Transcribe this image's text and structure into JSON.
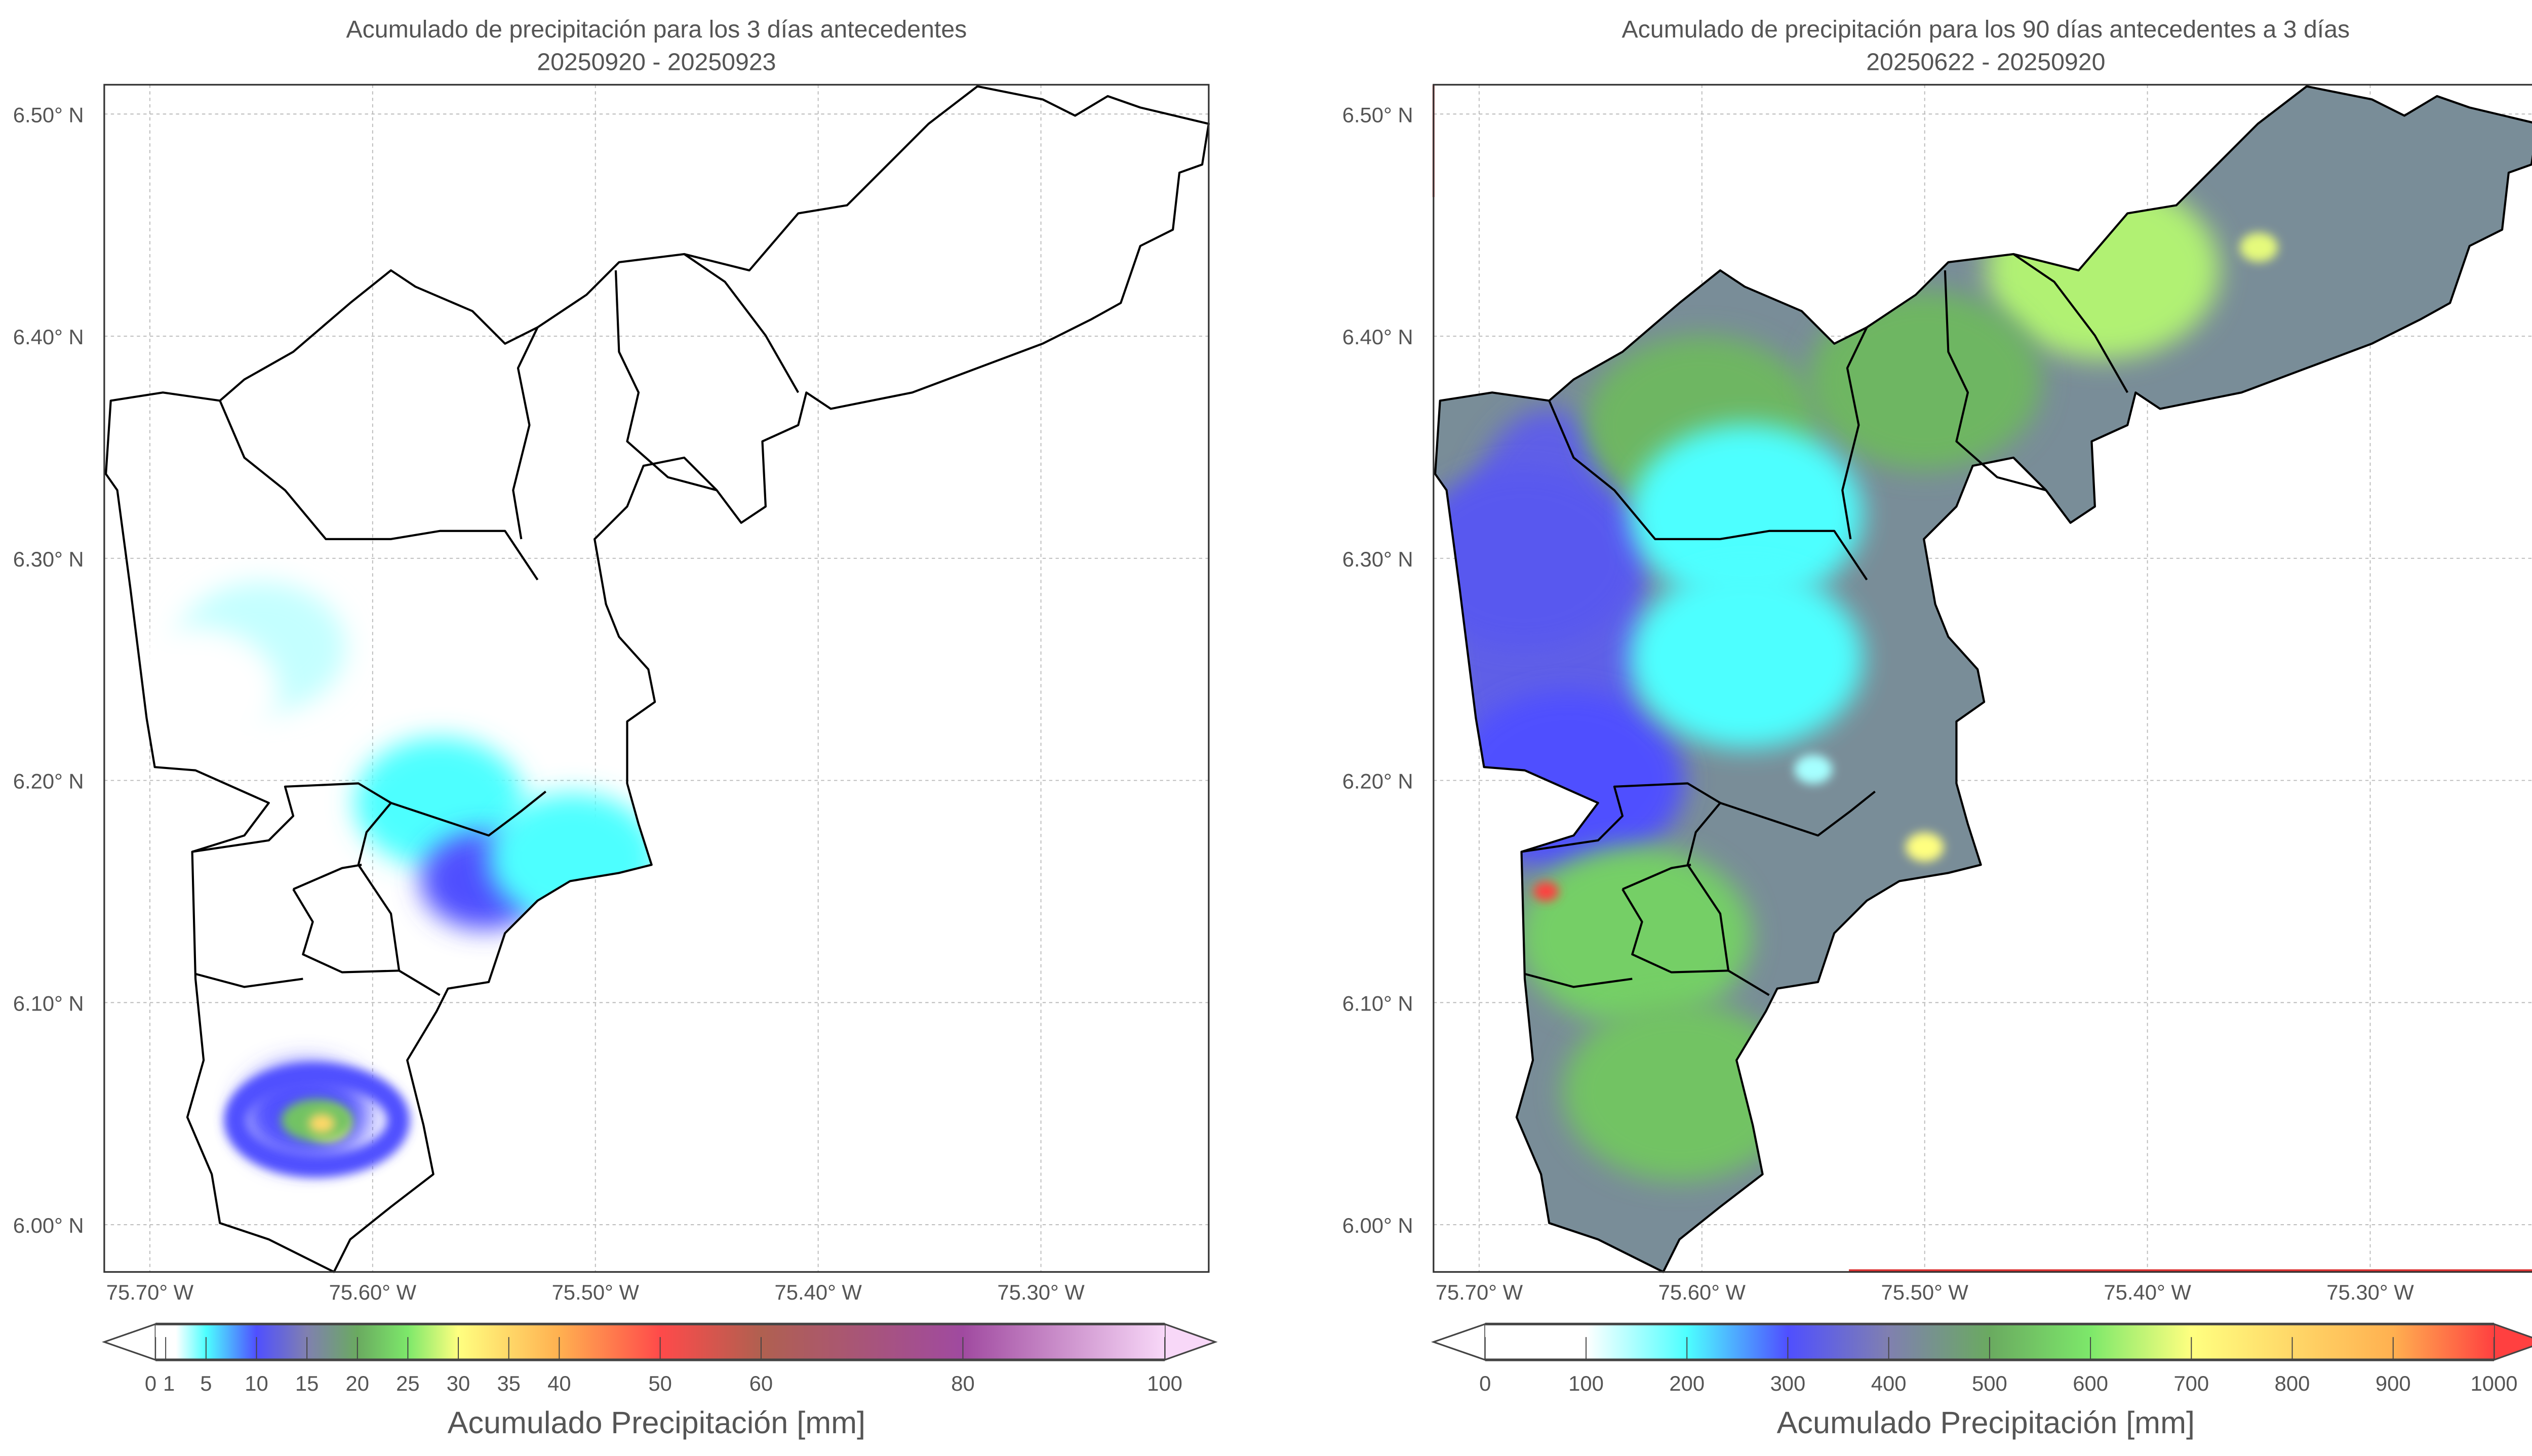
{
  "chart_data": [
    {
      "type": "heatmap",
      "title": "Acumulado de precipitación para los 3 días antecedentes",
      "subtitle": "20250920 - 20250923",
      "lat_ticks": [
        6.5,
        6.4,
        6.3,
        6.2,
        6.1,
        6.0
      ],
      "lat_labels": [
        "6.50° N",
        "6.40° N",
        "6.30° N",
        "6.20° N",
        "6.10° N",
        "6.00° N"
      ],
      "lon_ticks": [
        75.7,
        75.6,
        75.5,
        75.4,
        75.3
      ],
      "lon_labels": [
        "75.70° W",
        "75.60° W",
        "75.50° W",
        "75.40° W",
        "75.30° W"
      ],
      "grid": true,
      "hotspots": [
        {
          "lon": 75.65,
          "lat": 6.26,
          "value": 3
        },
        {
          "lon": 75.68,
          "lat": 6.24,
          "value": 2
        },
        {
          "lon": 75.57,
          "lat": 6.19,
          "value": 5
        },
        {
          "lon": 75.55,
          "lat": 6.155,
          "value": 10
        },
        {
          "lon": 75.51,
          "lat": 6.165,
          "value": 5
        },
        {
          "lon": 75.63,
          "lat": 6.05,
          "value": 10
        },
        {
          "lon": 75.62,
          "lat": 6.045,
          "value": 30
        }
      ],
      "colorbar": {
        "label": "Acumulado Precipitación [mm]",
        "range": [
          0,
          100
        ],
        "ticks": [
          0,
          1,
          5,
          10,
          15,
          20,
          25,
          30,
          35,
          40,
          50,
          60,
          80,
          100
        ],
        "tick_labels": [
          "0",
          "1",
          "5",
          "10",
          "15",
          "20",
          "25",
          "30",
          "35",
          "40",
          "50",
          "60",
          "80",
          "100"
        ],
        "stops": [
          [
            0,
            "#ffffff"
          ],
          [
            2,
            "#ffffff"
          ],
          [
            5,
            "#4dffff"
          ],
          [
            10,
            "#4f4fff"
          ],
          [
            15,
            "#8080b0"
          ],
          [
            20,
            "#6aaa60"
          ],
          [
            25,
            "#7de86a"
          ],
          [
            30,
            "#ffff80"
          ],
          [
            40,
            "#ffb050"
          ],
          [
            50,
            "#ff4a4a"
          ],
          [
            60,
            "#b06050"
          ],
          [
            80,
            "#a04aa0"
          ],
          [
            100,
            "#f8d8f8"
          ]
        ]
      }
    },
    {
      "type": "heatmap",
      "title": "Acumulado de precipitación para los 90 días antecedentes a 3 días",
      "subtitle": "20250622 - 20250920",
      "lat_ticks": [
        6.5,
        6.4,
        6.3,
        6.2,
        6.1,
        6.0
      ],
      "lat_labels": [
        "6.50° N",
        "6.40° N",
        "6.30° N",
        "6.20° N",
        "6.10° N",
        "6.00° N"
      ],
      "lon_ticks": [
        75.7,
        75.6,
        75.5,
        75.4,
        75.3
      ],
      "lon_labels": [
        "75.70° W",
        "75.60° W",
        "75.50° W",
        "75.40° W",
        "75.30° W"
      ],
      "grid": true,
      "background_value": 430,
      "hotspots": [
        {
          "lon": 75.68,
          "lat": 6.3,
          "value": 320
        },
        {
          "lon": 75.66,
          "lat": 6.2,
          "value": 300
        },
        {
          "lon": 75.6,
          "lat": 6.36,
          "value": 520
        },
        {
          "lon": 75.63,
          "lat": 6.13,
          "value": 560
        },
        {
          "lon": 75.61,
          "lat": 6.06,
          "value": 540
        },
        {
          "lon": 75.5,
          "lat": 6.17,
          "value": 700
        },
        {
          "lon": 75.42,
          "lat": 6.43,
          "value": 640
        },
        {
          "lon": 75.35,
          "lat": 6.44,
          "value": 680
        },
        {
          "lon": 75.5,
          "lat": 6.38,
          "value": 520
        },
        {
          "lon": 75.58,
          "lat": 6.32,
          "value": 200
        },
        {
          "lon": 75.58,
          "lat": 6.255,
          "value": 200
        },
        {
          "lon": 75.55,
          "lat": 6.205,
          "value": 150
        },
        {
          "lon": 75.67,
          "lat": 6.15,
          "value": 1000
        }
      ],
      "colorbar": {
        "label": "Acumulado Precipitación [mm]",
        "range": [
          0,
          1000
        ],
        "ticks": [
          0,
          100,
          200,
          300,
          400,
          500,
          600,
          700,
          800,
          900,
          1000
        ],
        "tick_labels": [
          "0",
          "100",
          "200",
          "300",
          "400",
          "500",
          "600",
          "700",
          "800",
          "900",
          "1000"
        ],
        "stops": [
          [
            0,
            "#ffffff"
          ],
          [
            100,
            "#ffffff"
          ],
          [
            200,
            "#4dffff"
          ],
          [
            300,
            "#4f4fff"
          ],
          [
            400,
            "#8080b0"
          ],
          [
            500,
            "#6aaa60"
          ],
          [
            600,
            "#7de86a"
          ],
          [
            700,
            "#ffff80"
          ],
          [
            900,
            "#ffb050"
          ],
          [
            1000,
            "#ff4040"
          ]
        ]
      }
    }
  ]
}
